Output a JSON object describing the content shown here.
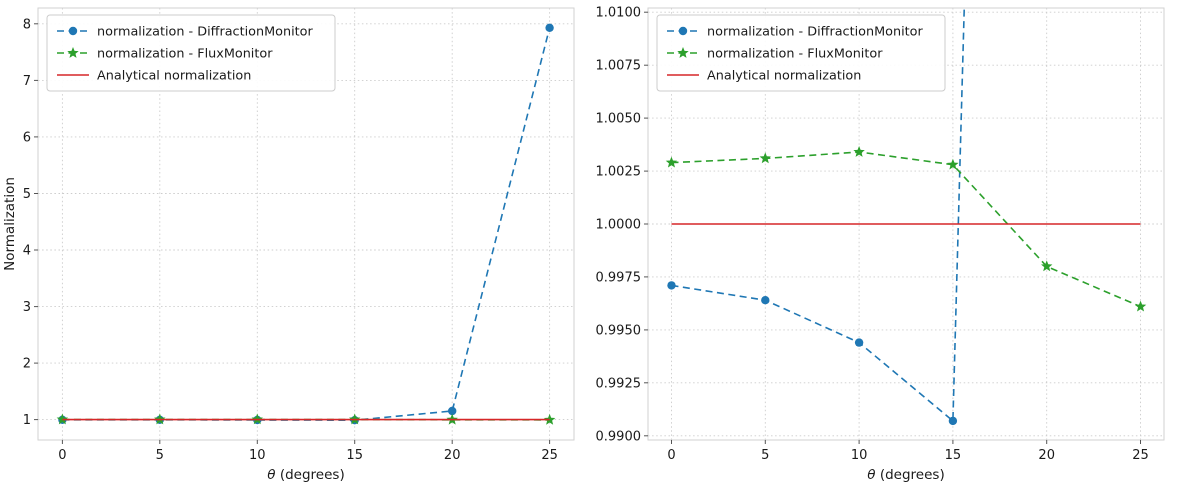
{
  "figure": {
    "background": "#ffffff"
  },
  "colors": {
    "diffraction_monitor": "#1f77b4",
    "flux_monitor": "#2ca02c",
    "analytical": "#d62728"
  },
  "chart_data": [
    {
      "type": "line",
      "title": "",
      "xlabel": "θ (degrees)",
      "ylabel": "Normalization",
      "xlim": [
        -1.25,
        26.25
      ],
      "ylim": [
        0.64,
        8.28
      ],
      "xticks": [
        0,
        5,
        10,
        15,
        20,
        25
      ],
      "xtick_labels": [
        "0",
        "5",
        "10",
        "15",
        "20",
        "25"
      ],
      "yticks": [
        1,
        2,
        3,
        4,
        5,
        6,
        7,
        8
      ],
      "ytick_labels": [
        "1",
        "2",
        "3",
        "4",
        "5",
        "6",
        "7",
        "8"
      ],
      "grid": true,
      "legend_position": "upper left",
      "series": [
        {
          "name": "normalization - DiffractionMonitor",
          "color": "#1f77b4",
          "linestyle": "dashed",
          "marker": "circle",
          "x": [
            0,
            5,
            10,
            15,
            20,
            25
          ],
          "y": [
            0.9971,
            0.9964,
            0.9944,
            0.9907,
            1.152,
            7.93
          ]
        },
        {
          "name": "normalization - FluxMonitor",
          "color": "#2ca02c",
          "linestyle": "dashed",
          "marker": "star",
          "x": [
            0,
            5,
            10,
            15,
            20,
            25
          ],
          "y": [
            1.0029,
            1.0031,
            1.0034,
            1.0028,
            0.998,
            0.9961
          ]
        },
        {
          "name": "Analytical normalization",
          "color": "#d62728",
          "linestyle": "solid",
          "marker": "none",
          "x": [
            0,
            25
          ],
          "y": [
            1.0,
            1.0
          ]
        }
      ]
    },
    {
      "type": "line",
      "title": "",
      "xlabel": "θ (degrees)",
      "ylabel": "",
      "xlim": [
        -1.25,
        26.25
      ],
      "ylim": [
        0.9898,
        1.0102
      ],
      "xticks": [
        0,
        5,
        10,
        15,
        20,
        25
      ],
      "xtick_labels": [
        "0",
        "5",
        "10",
        "15",
        "20",
        "25"
      ],
      "yticks": [
        0.99,
        0.9925,
        0.995,
        0.9975,
        1.0,
        1.0025,
        1.005,
        1.0075,
        1.01
      ],
      "ytick_labels": [
        "0.9900",
        "0.9925",
        "0.9950",
        "0.9975",
        "1.0000",
        "1.0025",
        "1.0050",
        "1.0075",
        "1.0100"
      ],
      "grid": true,
      "legend_position": "upper left",
      "series": [
        {
          "name": "normalization - DiffractionMonitor",
          "color": "#1f77b4",
          "linestyle": "dashed",
          "marker": "circle",
          "x": [
            0,
            5,
            10,
            15,
            20,
            25
          ],
          "y": [
            0.9971,
            0.9964,
            0.9944,
            0.9907,
            1.152,
            7.93
          ]
        },
        {
          "name": "normalization - FluxMonitor",
          "color": "#2ca02c",
          "linestyle": "dashed",
          "marker": "star",
          "x": [
            0,
            5,
            10,
            15,
            20,
            25
          ],
          "y": [
            1.0029,
            1.0031,
            1.0034,
            1.0028,
            0.998,
            0.9961
          ]
        },
        {
          "name": "Analytical normalization",
          "color": "#d62728",
          "linestyle": "solid",
          "marker": "none",
          "x": [
            0,
            25
          ],
          "y": [
            1.0,
            1.0
          ]
        }
      ]
    }
  ]
}
